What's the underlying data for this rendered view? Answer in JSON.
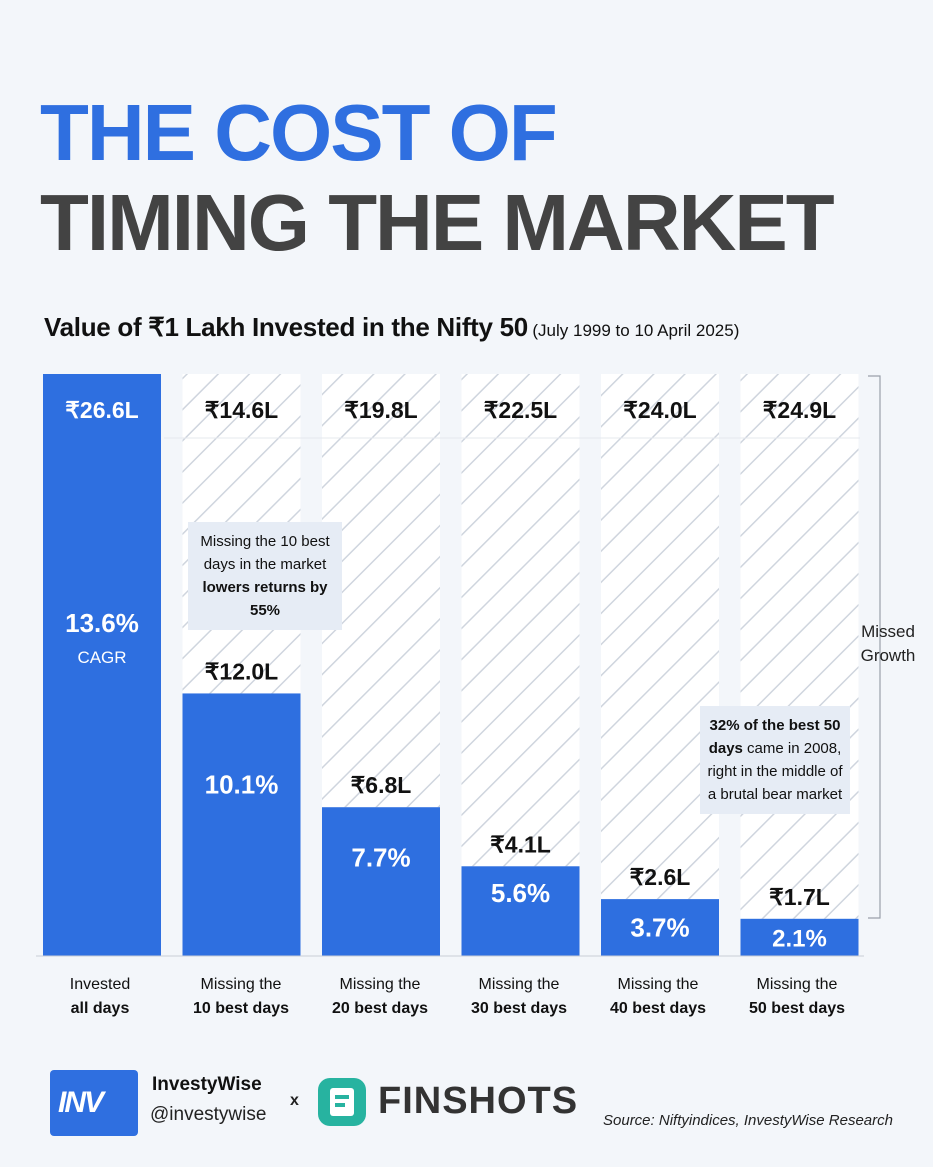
{
  "header": {
    "title_line1": "THE COST OF",
    "title_line2": "TIMING THE MARKET"
  },
  "chart_data": {
    "type": "bar",
    "title": "Value of ₹1 Lakh Invested in the Nifty 50",
    "subtitle": "(July 1999 to 10 April 2025)",
    "categories": [
      {
        "line1": "Invested",
        "line2": "all days"
      },
      {
        "line1": "Missing the",
        "line2": "10 best days"
      },
      {
        "line1": "Missing the",
        "line2": "20 best days"
      },
      {
        "line1": "Missing the",
        "line2": "30 best days"
      },
      {
        "line1": "Missing the",
        "line2": "40 best days"
      },
      {
        "line1": "Missing the",
        "line2": "50 best days"
      }
    ],
    "series": [
      {
        "values": [
          26.6,
          12.0,
          6.8,
          4.1,
          2.6,
          1.7
        ]
      }
    ],
    "value_labels": [
      "₹26.6L",
      "₹12.0L",
      "₹6.8L",
      "₹4.1L",
      "₹2.6L",
      "₹1.7L"
    ],
    "cagr_labels": [
      "13.6%",
      "10.1%",
      "7.7%",
      "5.6%",
      "3.7%",
      "2.1%"
    ],
    "cagr_suffix": "CAGR",
    "ylim": [
      0,
      26.6
    ],
    "missed_growth_labels": [
      "₹14.6L",
      "₹19.8L",
      "₹22.5L",
      "₹24.0L",
      "₹24.9L"
    ],
    "missed_growth_label": "Missed Growth",
    "annotations": [
      {
        "text_plain": "Missing the 10 best days in the market ",
        "text_bold": "lowers returns by 55%"
      },
      {
        "text_bold": "32% of the best 50 days",
        "text_plain": " came in 2008, right in the middle of a brutal bear market"
      }
    ],
    "colors": {
      "bar": "#2e6fe0",
      "hatch": "#cdd3dc",
      "background": "#f3f6fa"
    }
  },
  "footer": {
    "brand_logo_text": "INV",
    "brand_name": "InvestyWise",
    "brand_handle": "@investywise",
    "separator": "x",
    "partner_name": "FINSHOTS",
    "source": "Source: Niftyindices, InvestyWise Research"
  }
}
